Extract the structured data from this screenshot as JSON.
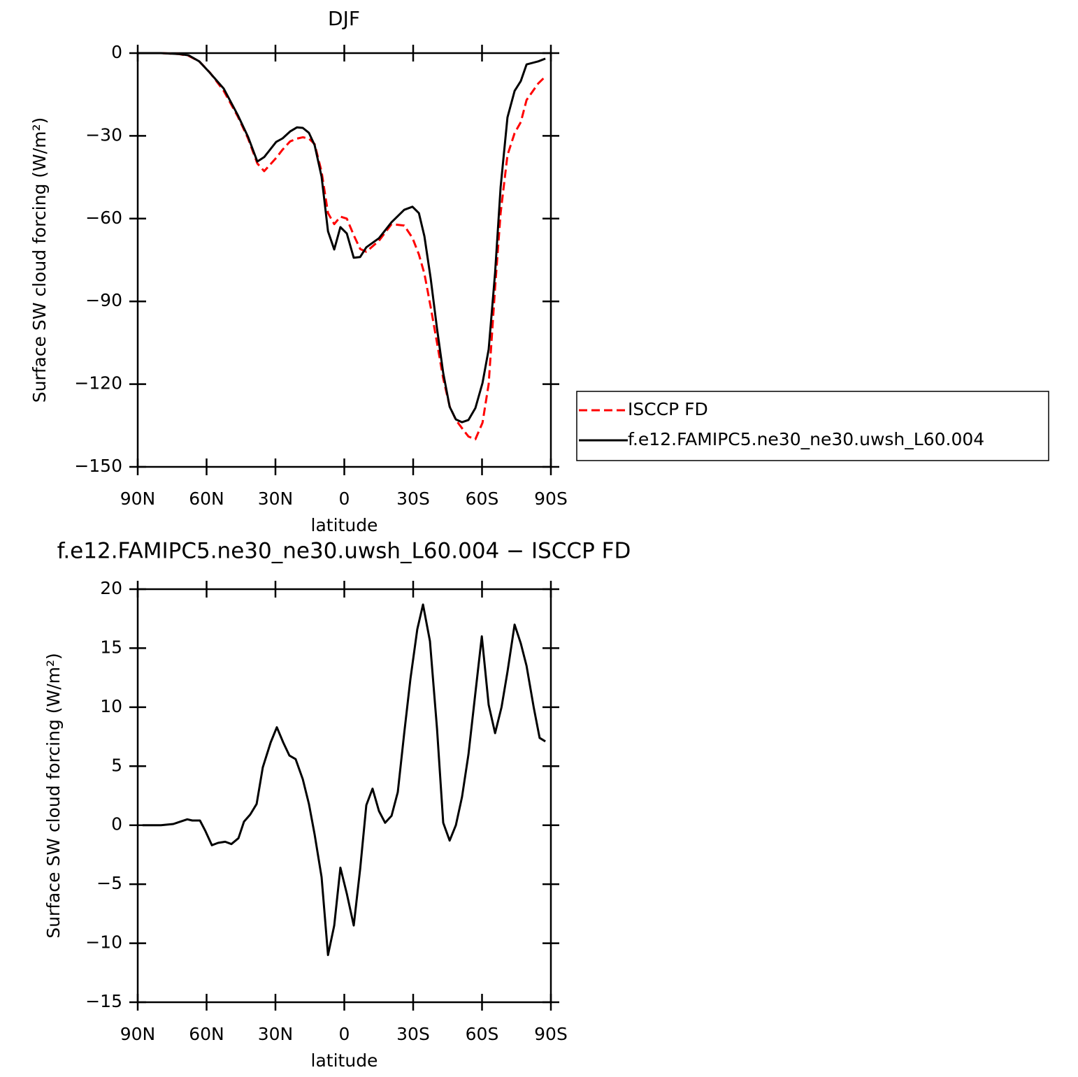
{
  "chart_data": [
    {
      "type": "line",
      "title": "DJF",
      "x_label": "latitude",
      "y_label": "Surface SW cloud forcing (W/m²)",
      "x": [
        90,
        79.9,
        72.3,
        67.8,
        63.2,
        58.6,
        52.5,
        46.4,
        41.9,
        37.9,
        34.9,
        29.7,
        26.9,
        23.6,
        20.6,
        18.1,
        15.4,
        12.9,
        9.9,
        7.1,
        4.4,
        1.7,
        -1.1,
        -4.1,
        -6.9,
        -9.6,
        -15.1,
        -20.6,
        -26.1,
        -29.7,
        -32.5,
        -34.9,
        -37.6,
        -40.4,
        -43.1,
        -45.9,
        -48.6,
        -51.3,
        -54.1,
        -57.1,
        -60.2,
        -62.9,
        -65.7,
        -68.1,
        -71.1,
        -74.2,
        -76.9,
        -79.4,
        -84.5,
        -87.6
      ],
      "series": [
        {
          "name": "ISCCP FD",
          "color": "#ff0000",
          "linestyle": "dashed",
          "values": [
            0,
            0,
            -0.3,
            -1,
            -3,
            -7,
            -13.7,
            -23,
            -31,
            -40,
            -42.8,
            -38,
            -35,
            -32,
            -31,
            -30.5,
            -31,
            -33,
            -43,
            -58,
            -62,
            -59.3,
            -60,
            -66,
            -71,
            -72,
            -68,
            -62,
            -62.5,
            -67,
            -73,
            -80,
            -92,
            -105,
            -118,
            -128,
            -133,
            -136,
            -139,
            -140,
            -134,
            -120,
            -85,
            -58,
            -37,
            -29,
            -25,
            -17,
            -11,
            -8.5
          ]
        },
        {
          "name": "f.e12.FAMIPC5.ne30_ne30.uwsh_L60.004",
          "color": "#000000",
          "linestyle": "solid",
          "values": [
            0,
            0,
            -0.3,
            -0.8,
            -3,
            -7.1,
            -12.9,
            -22.5,
            -30.4,
            -39.3,
            -37.7,
            -32.2,
            -30.9,
            -28.4,
            -26.9,
            -27.1,
            -28.9,
            -33.4,
            -44.8,
            -64.6,
            -71.2,
            -63.1,
            -65.4,
            -74.2,
            -73.9,
            -70.4,
            -67.1,
            -61.3,
            -56.8,
            -55.7,
            -58,
            -66.4,
            -81.6,
            -99.8,
            -116,
            -128.2,
            -132.8,
            -133.8,
            -133,
            -128.7,
            -119.6,
            -107.4,
            -79.6,
            -48.6,
            -23.3,
            -13.7,
            -10.1,
            -4.1,
            -3,
            -2
          ]
        }
      ],
      "xlim": [
        90,
        -90
      ],
      "xticks": [
        {
          "value": 90,
          "label": "90N"
        },
        {
          "value": 60,
          "label": "60N"
        },
        {
          "value": 30,
          "label": "30N"
        },
        0,
        {
          "value": -30,
          "label": "30S"
        },
        {
          "value": -60,
          "label": "60S"
        },
        {
          "value": -90,
          "label": "90S"
        }
      ],
      "ylim": [
        -150,
        0
      ],
      "yticks": [
        -150,
        -120,
        -90,
        -60,
        -30,
        0
      ],
      "legend": "right"
    },
    {
      "type": "line",
      "title": "f.e12.FAMIPC5.ne30_ne30.uwsh_L60.004 − ISCCP FD",
      "x_label": "latitude",
      "y_label": "Surface SW cloud forcing (W/m²)",
      "x": [
        87.9,
        79.9,
        74.5,
        71.4,
        68.4,
        66.2,
        62.9,
        60.5,
        57.7,
        55,
        51.9,
        49.2,
        46.1,
        43.7,
        41,
        38.2,
        35.5,
        32.1,
        29.4,
        26.6,
        23.9,
        21.2,
        18.1,
        15.4,
        12.9,
        9.9,
        7.1,
        4.4,
        1.7,
        -1.1,
        -4.1,
        -6.9,
        -9.6,
        -12.3,
        -15.1,
        -17.8,
        -20.6,
        -23.3,
        -26.1,
        -28.8,
        -31.8,
        -34.3,
        -37.3,
        -40.4,
        -43.1,
        -45.9,
        -48.6,
        -51.3,
        -54.1,
        -57.1,
        -59.9,
        -62.9,
        -65.7,
        -68.5,
        -71.1,
        -74.2,
        -76.9,
        -79.4,
        -82.5,
        -85.1,
        -87.6
      ],
      "series": [
        {
          "color": "#000000",
          "linestyle": "solid",
          "values": [
            0,
            0,
            0.1,
            0.3,
            0.5,
            0.4,
            0.4,
            -0.5,
            -1.7,
            -1.5,
            -1.4,
            -1.6,
            -1.1,
            0.3,
            0.9,
            1.8,
            4.9,
            7,
            8.3,
            7,
            5.9,
            5.6,
            3.9,
            1.8,
            -0.8,
            -4.4,
            -11,
            -8.5,
            -3.6,
            -5.8,
            -8.5,
            -3.7,
            1.7,
            3.1,
            1.2,
            0.2,
            0.8,
            2.8,
            7.8,
            12.4,
            16.6,
            18.7,
            15.6,
            8.2,
            0.2,
            -1.3,
            0,
            2.4,
            6,
            11.2,
            16,
            10.2,
            7.8,
            10,
            13,
            17,
            15.4,
            13.5,
            10,
            7.4,
            7.1
          ]
        }
      ],
      "xlim": [
        90,
        -90
      ],
      "xticks": [
        {
          "value": 90,
          "label": "90N"
        },
        {
          "value": 60,
          "label": "60N"
        },
        {
          "value": 30,
          "label": "30N"
        },
        0,
        {
          "value": -30,
          "label": "30S"
        },
        {
          "value": -60,
          "label": "60S"
        },
        {
          "value": -90,
          "label": "90S"
        }
      ],
      "ylim": [
        -15,
        20
      ],
      "yticks": [
        -15,
        -10,
        -5,
        0,
        5,
        10,
        15,
        20
      ]
    }
  ]
}
